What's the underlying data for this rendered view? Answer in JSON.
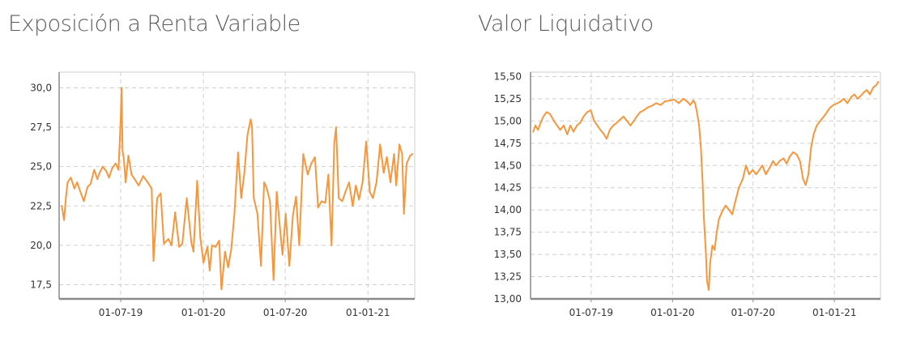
{
  "colors": {
    "series": "#f5973d",
    "grid": "#cfcfcf",
    "axis": "#8a8a8a",
    "title": "#5c5c5c"
  },
  "chart_data": [
    {
      "type": "line",
      "title": "Exposición a Renta Variable",
      "xlabel": "",
      "ylabel": "",
      "grid": true,
      "xlim": [
        "2019-02-14",
        "2021-04-15"
      ],
      "ylim": [
        16.6,
        31.0
      ],
      "yticks": [
        17.5,
        20.0,
        22.5,
        25.0,
        27.5,
        30.0
      ],
      "ytick_labels": [
        "17,5",
        "20,0",
        "22,5",
        "25,0",
        "27,5",
        "30,0"
      ],
      "xticks": [
        "2019-07-01",
        "2020-01-01",
        "2020-07-01",
        "2021-01-01"
      ],
      "xtick_labels": [
        "01-07-19",
        "01-01-20",
        "01-07-20",
        "01-01-21"
      ],
      "series": [
        {
          "x": [
            "2019-02-20",
            "2019-02-25",
            "2019-03-01",
            "2019-03-05",
            "2019-03-12",
            "2019-03-20",
            "2019-03-26",
            "2019-04-01",
            "2019-04-10",
            "2019-04-18",
            "2019-04-25",
            "2019-05-03",
            "2019-05-10",
            "2019-05-15",
            "2019-05-22",
            "2019-05-30",
            "2019-06-05",
            "2019-06-12",
            "2019-06-20",
            "2019-06-26",
            "2019-07-01",
            "2019-07-03",
            "2019-07-05",
            "2019-07-08",
            "2019-07-12",
            "2019-07-18",
            "2019-07-25",
            "2019-08-01",
            "2019-08-10",
            "2019-08-20",
            "2019-08-30",
            "2019-09-08",
            "2019-09-12",
            "2019-09-20",
            "2019-09-28",
            "2019-10-05",
            "2019-10-15",
            "2019-10-22",
            "2019-10-30",
            "2019-11-08",
            "2019-11-15",
            "2019-11-25",
            "2019-12-05",
            "2019-12-10",
            "2019-12-18",
            "2019-12-25",
            "2020-01-01",
            "2020-01-06",
            "2020-01-10",
            "2020-01-15",
            "2020-01-20",
            "2020-01-28",
            "2020-02-05",
            "2020-02-10",
            "2020-02-18",
            "2020-02-25",
            "2020-03-03",
            "2020-03-10",
            "2020-03-18",
            "2020-03-25",
            "2020-04-01",
            "2020-04-08",
            "2020-04-15",
            "2020-04-18",
            "2020-04-22",
            "2020-04-30",
            "2020-05-08",
            "2020-05-15",
            "2020-05-20",
            "2020-05-28",
            "2020-06-05",
            "2020-06-12",
            "2020-06-18",
            "2020-06-25",
            "2020-07-02",
            "2020-07-10",
            "2020-07-18",
            "2020-07-25",
            "2020-08-01",
            "2020-08-10",
            "2020-08-20",
            "2020-08-28",
            "2020-09-05",
            "2020-09-12",
            "2020-09-20",
            "2020-09-28",
            "2020-10-05",
            "2020-10-12",
            "2020-10-18",
            "2020-10-22",
            "2020-10-28",
            "2020-11-05",
            "2020-11-12",
            "2020-11-20",
            "2020-11-28",
            "2020-12-05",
            "2020-12-12",
            "2020-12-20",
            "2020-12-28",
            "2021-01-05",
            "2021-01-12",
            "2021-01-20",
            "2021-01-28",
            "2021-02-05",
            "2021-02-12",
            "2021-02-20",
            "2021-02-28",
            "2021-03-05",
            "2021-03-12",
            "2021-03-18",
            "2021-03-22",
            "2021-03-28",
            "2021-04-05",
            "2021-04-10"
          ],
          "values": [
            22.5,
            21.6,
            23.0,
            24.0,
            24.3,
            23.6,
            24.0,
            23.5,
            22.8,
            23.7,
            23.9,
            24.8,
            24.2,
            24.6,
            25.0,
            24.7,
            24.3,
            24.9,
            25.2,
            24.8,
            28.0,
            30.0,
            26.0,
            25.5,
            24.0,
            25.7,
            24.5,
            24.2,
            23.8,
            24.4,
            24.0,
            23.6,
            19.0,
            23.0,
            23.3,
            20.1,
            20.4,
            20.0,
            22.1,
            19.9,
            20.1,
            23.0,
            20.2,
            19.6,
            24.1,
            20.5,
            18.9,
            19.5,
            19.9,
            18.4,
            20.0,
            19.9,
            20.3,
            17.2,
            19.6,
            18.6,
            19.8,
            22.0,
            25.9,
            23.0,
            24.6,
            27.0,
            28.0,
            27.6,
            23.0,
            22.0,
            18.7,
            24.0,
            23.7,
            22.8,
            17.8,
            23.4,
            21.5,
            19.4,
            22.0,
            18.7,
            21.9,
            23.1,
            20.0,
            25.8,
            24.5,
            25.2,
            25.6,
            22.4,
            22.8,
            22.7,
            24.5,
            20.0,
            26.5,
            27.5,
            23.0,
            22.8,
            23.4,
            24.0,
            22.5,
            23.8,
            22.9,
            24.0,
            26.6,
            23.4,
            23.0,
            24.0,
            26.4,
            24.6,
            25.6,
            24.0,
            25.8,
            23.8,
            26.4,
            25.8,
            22.0,
            25.2,
            25.7,
            25.8
          ]
        }
      ]
    },
    {
      "type": "line",
      "title": "Valor Liquidativo",
      "xlabel": "",
      "ylabel": "",
      "grid": true,
      "xlim": [
        "2019-02-14",
        "2021-04-15"
      ],
      "ylim": [
        13.0,
        15.55
      ],
      "yticks": [
        13.0,
        13.25,
        13.5,
        13.75,
        14.0,
        14.25,
        14.5,
        14.75,
        15.0,
        15.25,
        15.5
      ],
      "ytick_labels": [
        "13,00",
        "13,25",
        "13,50",
        "13,75",
        "14,00",
        "14,25",
        "14,50",
        "14,75",
        "15,00",
        "15,25",
        "15,50"
      ],
      "xticks": [
        "2019-07-01",
        "2020-01-01",
        "2020-07-01",
        "2021-01-01"
      ],
      "xtick_labels": [
        "01-07-19",
        "01-01-20",
        "01-07-20",
        "01-01-21"
      ],
      "series": [
        {
          "x": [
            "2019-02-20",
            "2019-02-25",
            "2019-03-03",
            "2019-03-08",
            "2019-03-15",
            "2019-03-22",
            "2019-03-30",
            "2019-04-08",
            "2019-04-15",
            "2019-04-22",
            "2019-04-30",
            "2019-05-08",
            "2019-05-15",
            "2019-05-22",
            "2019-05-30",
            "2019-06-06",
            "2019-06-14",
            "2019-06-22",
            "2019-06-30",
            "2019-07-08",
            "2019-07-15",
            "2019-07-22",
            "2019-07-30",
            "2019-08-05",
            "2019-08-12",
            "2019-08-20",
            "2019-08-28",
            "2019-09-05",
            "2019-09-12",
            "2019-09-20",
            "2019-09-28",
            "2019-10-05",
            "2019-10-12",
            "2019-10-20",
            "2019-10-28",
            "2019-11-05",
            "2019-11-15",
            "2019-11-25",
            "2019-12-05",
            "2019-12-15",
            "2019-12-25",
            "2020-01-05",
            "2020-01-15",
            "2020-01-25",
            "2020-02-03",
            "2020-02-10",
            "2020-02-17",
            "2020-02-21",
            "2020-02-25",
            "2020-03-01",
            "2020-03-05",
            "2020-03-09",
            "2020-03-12",
            "2020-03-16",
            "2020-03-19",
            "2020-03-23",
            "2020-03-26",
            "2020-03-31",
            "2020-04-05",
            "2020-04-10",
            "2020-04-15",
            "2020-04-22",
            "2020-04-30",
            "2020-05-08",
            "2020-05-15",
            "2020-05-22",
            "2020-05-30",
            "2020-06-08",
            "2020-06-15",
            "2020-06-22",
            "2020-06-30",
            "2020-07-08",
            "2020-07-15",
            "2020-07-22",
            "2020-07-30",
            "2020-08-08",
            "2020-08-15",
            "2020-08-22",
            "2020-08-30",
            "2020-09-08",
            "2020-09-15",
            "2020-09-22",
            "2020-09-30",
            "2020-10-08",
            "2020-10-15",
            "2020-10-22",
            "2020-10-28",
            "2020-11-03",
            "2020-11-09",
            "2020-11-15",
            "2020-11-22",
            "2020-11-30",
            "2020-12-08",
            "2020-12-15",
            "2020-12-22",
            "2020-12-30",
            "2021-01-08",
            "2021-01-15",
            "2021-01-22",
            "2021-01-30",
            "2021-02-08",
            "2021-02-15",
            "2021-02-22",
            "2021-03-01",
            "2021-03-08",
            "2021-03-15",
            "2021-03-22",
            "2021-03-30",
            "2021-04-05",
            "2021-04-10"
          ],
          "values": [
            14.88,
            14.95,
            14.9,
            14.97,
            15.05,
            15.1,
            15.08,
            15.0,
            14.95,
            14.9,
            14.95,
            14.85,
            14.95,
            14.88,
            14.95,
            14.98,
            15.05,
            15.1,
            15.12,
            15.0,
            14.95,
            14.9,
            14.85,
            14.8,
            14.9,
            14.95,
            14.98,
            15.02,
            15.05,
            15.0,
            14.95,
            15.0,
            15.05,
            15.1,
            15.12,
            15.15,
            15.17,
            15.2,
            15.18,
            15.22,
            15.23,
            15.24,
            15.2,
            15.25,
            15.22,
            15.18,
            15.23,
            15.2,
            15.1,
            14.95,
            14.7,
            14.3,
            13.9,
            13.55,
            13.2,
            13.1,
            13.4,
            13.6,
            13.55,
            13.75,
            13.9,
            13.98,
            14.05,
            14.0,
            13.95,
            14.1,
            14.25,
            14.35,
            14.5,
            14.4,
            14.45,
            14.4,
            14.45,
            14.5,
            14.4,
            14.48,
            14.55,
            14.5,
            14.55,
            14.58,
            14.52,
            14.6,
            14.65,
            14.62,
            14.55,
            14.35,
            14.28,
            14.4,
            14.7,
            14.85,
            14.95,
            15.0,
            15.05,
            15.1,
            15.15,
            15.18,
            15.2,
            15.22,
            15.25,
            15.2,
            15.27,
            15.3,
            15.25,
            15.28,
            15.32,
            15.35,
            15.3,
            15.38,
            15.4,
            15.44
          ]
        }
      ]
    }
  ]
}
